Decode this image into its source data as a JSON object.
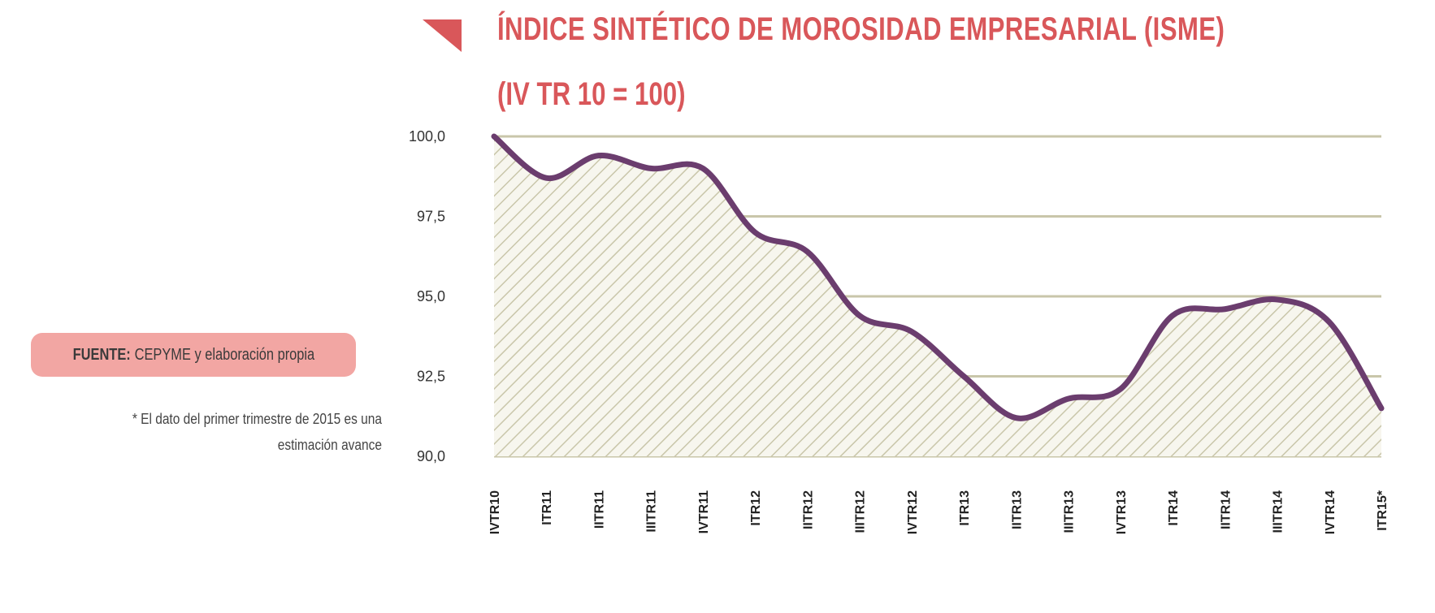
{
  "header": {
    "title": "ÍNDICE SINTÉTICO DE MOROSIDAD EMPRESARIAL (ISME)",
    "subtitle": "(IV TR 10 = 100)"
  },
  "source": {
    "label": "FUENTE:",
    "text": "CEPYME y elaboración propia"
  },
  "footnote": "* El dato del primer trimestre de 2015 es una estimación avance",
  "colors": {
    "accent": "#d9575a",
    "line": "#6b3d6e",
    "grid": "#c9c6aa",
    "pill": "#f2a6a3"
  },
  "chart_data": {
    "type": "area",
    "title": "ÍNDICE SINTÉTICO DE MOROSIDAD EMPRESARIAL (ISME)",
    "subtitle": "(IV TR 10 = 100)",
    "categories": [
      "IVTR10",
      "ITR11",
      "IITR11",
      "IIITR11",
      "IVTR11",
      "ITR12",
      "IITR12",
      "IIITR12",
      "IVTR12",
      "ITR13",
      "IITR13",
      "IIITR13",
      "IVTR13",
      "ITR14",
      "IITR14",
      "IIITR14",
      "IVTR14",
      "ITR15*"
    ],
    "values": [
      100.0,
      98.7,
      99.4,
      99.0,
      99.0,
      97.0,
      96.4,
      94.4,
      93.9,
      92.5,
      91.2,
      91.8,
      92.1,
      94.4,
      94.6,
      94.9,
      94.2,
      91.5
    ],
    "ylim": [
      90.0,
      100.0
    ],
    "yticks": [
      "100,0",
      "97,5",
      "95,0",
      "92,5",
      "90,0"
    ],
    "ytick_values": [
      100.0,
      97.5,
      95.0,
      92.5,
      90.0
    ],
    "grid": true
  }
}
